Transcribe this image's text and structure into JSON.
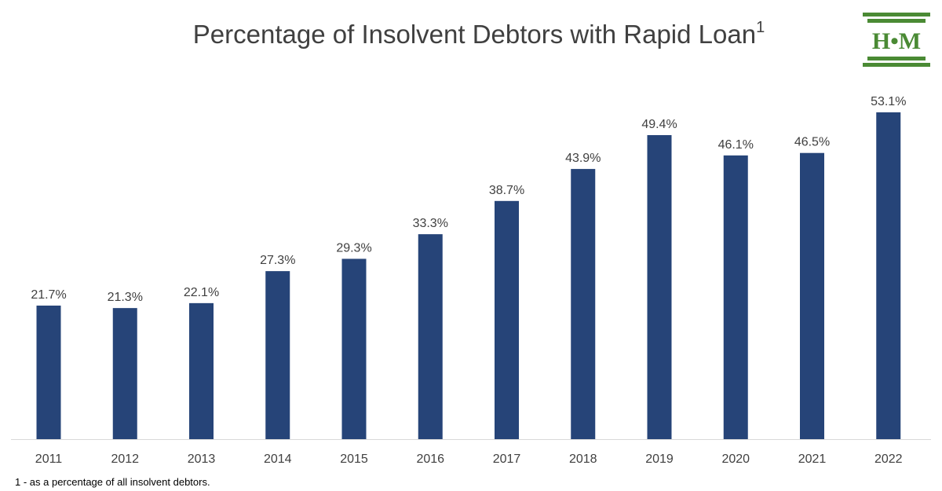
{
  "title": {
    "text": "Percentage of Insolvent Debtors with Rapid Loan",
    "superscript": "1"
  },
  "footnote": "1 - as a percentage of all insolvent debtors.",
  "logo": {
    "text": "H•M",
    "color": "#4a8a34"
  },
  "chart_data": {
    "type": "bar",
    "title": "Percentage of Insolvent Debtors with Rapid Loan",
    "xlabel": "",
    "ylabel": "",
    "categories": [
      "2011",
      "2012",
      "2013",
      "2014",
      "2015",
      "2016",
      "2017",
      "2018",
      "2019",
      "2020",
      "2021",
      "2022"
    ],
    "values": [
      21.7,
      21.3,
      22.1,
      27.3,
      29.3,
      33.3,
      38.7,
      43.9,
      49.4,
      46.1,
      46.5,
      53.1
    ],
    "value_labels": [
      "21.7%",
      "21.3%",
      "22.1%",
      "27.3%",
      "29.3%",
      "33.3%",
      "38.7%",
      "43.9%",
      "49.4%",
      "46.1%",
      "46.5%",
      "53.1%"
    ],
    "ylim": [
      0,
      53.1
    ],
    "grid": false,
    "legend": "none",
    "bar_color": "#264478",
    "axis_color": "#d9d9d9"
  }
}
